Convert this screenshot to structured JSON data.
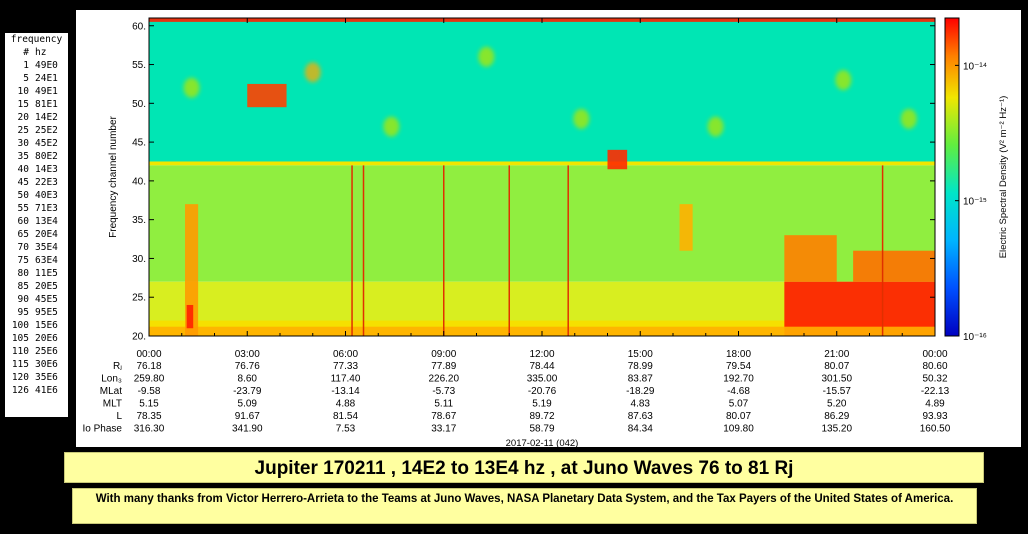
{
  "freq_table": {
    "header1": "frequency",
    "header_num": "#",
    "header_hz": "hz",
    "rows": [
      [
        "1",
        "49E0"
      ],
      [
        "5",
        "24E1"
      ],
      [
        "10",
        "49E1"
      ],
      [
        "15",
        "81E1"
      ],
      [
        "20",
        "14E2"
      ],
      [
        "25",
        "25E2"
      ],
      [
        "30",
        "45E2"
      ],
      [
        "35",
        "80E2"
      ],
      [
        "40",
        "14E3"
      ],
      [
        "45",
        "22E3"
      ],
      [
        "50",
        "40E3"
      ],
      [
        "55",
        "71E3"
      ],
      [
        "60",
        "13E4"
      ],
      [
        "65",
        "20E4"
      ],
      [
        "70",
        "35E4"
      ],
      [
        "75",
        "63E4"
      ],
      [
        "80",
        "11E5"
      ],
      [
        "85",
        "20E5"
      ],
      [
        "90",
        "45E5"
      ],
      [
        "95",
        "95E5"
      ],
      [
        "100",
        "15E6"
      ],
      [
        "105",
        "20E6"
      ],
      [
        "110",
        "25E6"
      ],
      [
        "115",
        "30E6"
      ],
      [
        "120",
        "35E6"
      ],
      [
        "126",
        "41E6"
      ]
    ]
  },
  "chart_data": {
    "type": "heatmap",
    "ylabel": "Frequency channel number",
    "colorbar_label": "Electric Spectral Density (V² m⁻² Hz⁻¹)",
    "ylim": [
      20,
      61
    ],
    "yticks": [
      "20.",
      "25.",
      "30.",
      "35.",
      "40.",
      "45.",
      "50.",
      "55.",
      "60."
    ],
    "ytick_values": [
      20,
      25,
      30,
      35,
      40,
      45,
      50,
      55,
      60
    ],
    "xticks": [
      "00:00",
      "03:00",
      "06:00",
      "09:00",
      "12:00",
      "15:00",
      "18:00",
      "21:00",
      "00:00"
    ],
    "xtick_hours": [
      0,
      3,
      6,
      9,
      12,
      15,
      18,
      21,
      24
    ],
    "date_label": "2017-02-11 (042)",
    "colorbar_ticks": [
      {
        "label": "10⁻¹⁴",
        "log10": -14
      },
      {
        "label": "10⁻¹⁵",
        "log10": -15
      },
      {
        "label": "10⁻¹⁶",
        "log10": -16
      }
    ],
    "colorbar_range_log10": [
      -16,
      -13.65
    ],
    "ephemeris": {
      "labels": [
        "Rⱼ",
        "Lon₃",
        "MLat",
        "MLT",
        "L",
        "Io Phase"
      ],
      "rows": [
        [
          "76.18",
          "76.76",
          "77.33",
          "77.89",
          "78.44",
          "78.99",
          "79.54",
          "80.07",
          "80.60"
        ],
        [
          "259.80",
          "8.60",
          "117.40",
          "226.20",
          "335.00",
          "83.87",
          "192.70",
          "301.50",
          "50.32"
        ],
        [
          "-9.58",
          "-23.79",
          "-13.14",
          "-5.73",
          "-20.76",
          "-18.29",
          "-4.68",
          "-15.57",
          "-22.13"
        ],
        [
          "5.15",
          "5.09",
          "4.88",
          "5.11",
          "5.19",
          "4.83",
          "5.07",
          "5.20",
          "4.89"
        ],
        [
          "78.35",
          "91.67",
          "81.54",
          "78.67",
          "89.72",
          "87.63",
          "80.07",
          "86.29",
          "93.93"
        ],
        [
          "316.30",
          "341.90",
          "7.53",
          "33.17",
          "58.79",
          "84.34",
          "109.80",
          "135.20",
          "160.50"
        ]
      ]
    },
    "background_bands": [
      {
        "y0": 42.5,
        "y1": 61,
        "color": "#00e6b4"
      },
      {
        "y0": 42,
        "y1": 42.5,
        "color": "#f0e600"
      },
      {
        "y0": 27,
        "y1": 42,
        "color": "#90ee40"
      },
      {
        "y0": 22,
        "y1": 27,
        "color": "#d8ee20"
      },
      {
        "y0": 20,
        "y1": 22,
        "color": "#f5e000"
      }
    ],
    "intense_regions": [
      {
        "h0": 19.4,
        "h1": 24,
        "y0": 20,
        "y1": 27,
        "color": "#ff1a00"
      },
      {
        "h0": 19.4,
        "h1": 21,
        "y0": 27,
        "y1": 33,
        "color": "#ff8000"
      },
      {
        "h0": 21.5,
        "h1": 24,
        "y0": 27,
        "y1": 31,
        "color": "#ff7000"
      },
      {
        "h0": 0,
        "h1": 24,
        "y0": 20,
        "y1": 21.2,
        "color": "#ffb000"
      },
      {
        "h0": 1.1,
        "h1": 1.5,
        "y0": 20,
        "y1": 37,
        "color": "#ff9a00"
      },
      {
        "h0": 1.15,
        "h1": 1.35,
        "y0": 21,
        "y1": 24,
        "color": "#ff2000"
      },
      {
        "h0": 14,
        "h1": 14.6,
        "y0": 41.5,
        "y1": 44,
        "color": "#ff2a00"
      },
      {
        "h0": 3,
        "h1": 4.2,
        "y0": 49.5,
        "y1": 52.5,
        "color": "#ff4000"
      },
      {
        "h0": 16.2,
        "h1": 16.6,
        "y0": 31,
        "y1": 37,
        "color": "#ffb000"
      },
      {
        "h0": 0,
        "h1": 24,
        "y0": 60.5,
        "y1": 61,
        "color": "#ff2000"
      }
    ],
    "emission_lines_hours": [
      6.2,
      6.55,
      9.0,
      11.0,
      12.8,
      22.4
    ],
    "hot_patches": [
      {
        "h": 1.3,
        "y": 52,
        "color": "#b4e600"
      },
      {
        "h": 5.0,
        "y": 54,
        "color": "#ffaa00"
      },
      {
        "h": 7.4,
        "y": 47,
        "color": "#b4e600"
      },
      {
        "h": 10.3,
        "y": 56,
        "color": "#b4e600"
      },
      {
        "h": 13.2,
        "y": 48,
        "color": "#b4e600"
      },
      {
        "h": 17.3,
        "y": 47,
        "color": "#b4e600"
      },
      {
        "h": 21.2,
        "y": 53,
        "color": "#b4e600"
      },
      {
        "h": 23.2,
        "y": 48,
        "color": "#b4e600"
      }
    ]
  },
  "title": "Jupiter 170211 , 14E2 to 13E4 hz , at Juno Waves 76 to 81 Rj",
  "thanks": "With many thanks from Victor Herrero-Arrieta to the Teams at Juno Waves, NASA Planetary Data System, and the Tax Payers of the United States of America."
}
